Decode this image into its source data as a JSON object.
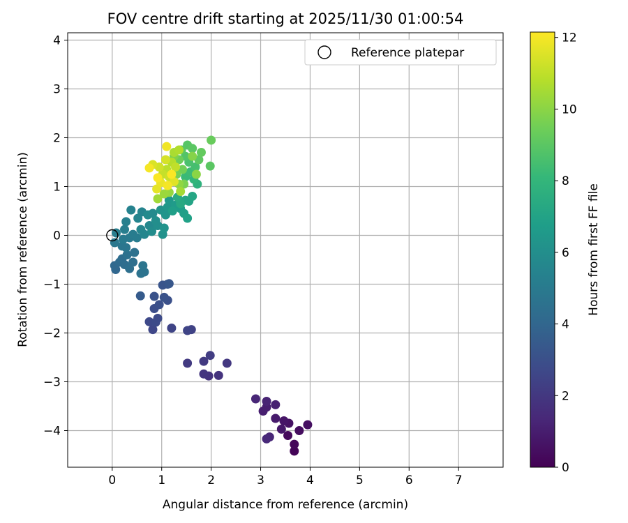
{
  "chart_data": {
    "type": "scatter",
    "title": "FOV centre drift starting at 2025/11/30 01:00:54",
    "xlabel": "Angular distance from reference (arcmin)",
    "ylabel": "Rotation from reference (arcmin)",
    "xlim": [
      -0.9,
      7.9
    ],
    "ylim": [
      -4.75,
      4.15
    ],
    "xticks": [
      0,
      1,
      2,
      3,
      4,
      5,
      6,
      7
    ],
    "yticks": [
      -4,
      -3,
      -2,
      -1,
      0,
      1,
      2,
      3,
      4
    ],
    "grid": true,
    "legend": {
      "position": "top-right",
      "entries": [
        {
          "label": "Reference platepar",
          "marker": "open-circle"
        }
      ]
    },
    "reference_point": {
      "x": 0,
      "y": 0
    },
    "colorbar": {
      "label": "Hours from first FF file",
      "range": [
        0,
        12.15
      ],
      "ticks": [
        0,
        2,
        4,
        6,
        8,
        10,
        12
      ],
      "colormap": "viridis",
      "color_stops": [
        "#440154",
        "#482878",
        "#3e4989",
        "#31688e",
        "#26828e",
        "#1f9e89",
        "#35b779",
        "#6ece58",
        "#b5de2b",
        "#fde725"
      ]
    },
    "points": [
      {
        "x": 3.68,
        "y": -4.42,
        "h": 0.1
      },
      {
        "x": 3.68,
        "y": -4.28,
        "h": 0.2
      },
      {
        "x": 3.55,
        "y": -4.1,
        "h": 0.3
      },
      {
        "x": 3.78,
        "y": -4.0,
        "h": 0.4
      },
      {
        "x": 3.95,
        "y": -3.88,
        "h": 0.5
      },
      {
        "x": 3.57,
        "y": -3.85,
        "h": 0.6
      },
      {
        "x": 3.47,
        "y": -3.8,
        "h": 0.7
      },
      {
        "x": 3.42,
        "y": -3.97,
        "h": 0.8
      },
      {
        "x": 3.3,
        "y": -3.75,
        "h": 0.9
      },
      {
        "x": 3.05,
        "y": -3.6,
        "h": 1.0
      },
      {
        "x": 3.12,
        "y": -3.52,
        "h": 1.0
      },
      {
        "x": 3.3,
        "y": -3.47,
        "h": 1.1
      },
      {
        "x": 3.12,
        "y": -3.4,
        "h": 1.2
      },
      {
        "x": 2.9,
        "y": -3.35,
        "h": 1.3
      },
      {
        "x": 3.18,
        "y": -4.13,
        "h": 1.3
      },
      {
        "x": 3.12,
        "y": -4.17,
        "h": 1.4
      },
      {
        "x": 2.15,
        "y": -2.87,
        "h": 1.8
      },
      {
        "x": 1.95,
        "y": -2.88,
        "h": 1.8
      },
      {
        "x": 1.85,
        "y": -2.84,
        "h": 1.9
      },
      {
        "x": 2.32,
        "y": -2.62,
        "h": 2.0
      },
      {
        "x": 1.52,
        "y": -2.62,
        "h": 2.1
      },
      {
        "x": 1.85,
        "y": -2.58,
        "h": 2.1
      },
      {
        "x": 1.98,
        "y": -2.46,
        "h": 2.2
      },
      {
        "x": 1.6,
        "y": -1.93,
        "h": 2.4
      },
      {
        "x": 1.52,
        "y": -1.95,
        "h": 2.5
      },
      {
        "x": 1.2,
        "y": -1.9,
        "h": 2.5
      },
      {
        "x": 0.82,
        "y": -1.93,
        "h": 2.6
      },
      {
        "x": 0.75,
        "y": -1.77,
        "h": 2.7
      },
      {
        "x": 0.92,
        "y": -1.7,
        "h": 2.8
      },
      {
        "x": 0.88,
        "y": -1.78,
        "h": 2.8
      },
      {
        "x": 0.85,
        "y": -1.5,
        "h": 2.9
      },
      {
        "x": 0.95,
        "y": -1.42,
        "h": 3.0
      },
      {
        "x": 1.12,
        "y": -1.33,
        "h": 3.0
      },
      {
        "x": 1.05,
        "y": -1.27,
        "h": 3.1
      },
      {
        "x": 0.85,
        "y": -1.25,
        "h": 3.1
      },
      {
        "x": 1.02,
        "y": -1.02,
        "h": 3.2
      },
      {
        "x": 1.12,
        "y": -1.0,
        "h": 3.2
      },
      {
        "x": 1.15,
        "y": -0.99,
        "h": 3.3
      },
      {
        "x": 0.57,
        "y": -1.24,
        "h": 3.5
      },
      {
        "x": 0.07,
        "y": -0.7,
        "h": 4.0
      },
      {
        "x": 0.05,
        "y": -0.62,
        "h": 4.1
      },
      {
        "x": 0.15,
        "y": -0.55,
        "h": 4.2
      },
      {
        "x": 0.2,
        "y": -0.48,
        "h": 4.3
      },
      {
        "x": 0.25,
        "y": -0.6,
        "h": 4.3
      },
      {
        "x": 0.35,
        "y": -0.68,
        "h": 4.4
      },
      {
        "x": 0.42,
        "y": -0.55,
        "h": 4.4
      },
      {
        "x": 0.3,
        "y": -0.4,
        "h": 4.5
      },
      {
        "x": 0.45,
        "y": -0.35,
        "h": 4.5
      },
      {
        "x": 0.58,
        "y": -0.78,
        "h": 4.6
      },
      {
        "x": 0.65,
        "y": -0.75,
        "h": 4.6
      },
      {
        "x": 0.62,
        "y": -0.62,
        "h": 4.7
      },
      {
        "x": 0.2,
        "y": -0.22,
        "h": 4.8
      },
      {
        "x": 0.28,
        "y": -0.25,
        "h": 4.8
      },
      {
        "x": 0.05,
        "y": -0.15,
        "h": 4.9
      },
      {
        "x": 0.22,
        "y": -0.08,
        "h": 5.0
      },
      {
        "x": 0.35,
        "y": -0.05,
        "h": 5.0
      },
      {
        "x": 0.42,
        "y": 0.02,
        "h": 5.1
      },
      {
        "x": 0.5,
        "y": -0.05,
        "h": 5.1
      },
      {
        "x": 0.08,
        "y": 0.05,
        "h": 5.2
      },
      {
        "x": 0.25,
        "y": 0.12,
        "h": 5.2
      },
      {
        "x": 0.28,
        "y": 0.28,
        "h": 5.3
      },
      {
        "x": 0.38,
        "y": 0.52,
        "h": 5.4
      },
      {
        "x": 0.52,
        "y": 0.35,
        "h": 5.5
      },
      {
        "x": 0.6,
        "y": 0.48,
        "h": 5.5
      },
      {
        "x": 0.58,
        "y": 0.12,
        "h": 5.6
      },
      {
        "x": 0.65,
        "y": 0.02,
        "h": 5.6
      },
      {
        "x": 0.75,
        "y": 0.2,
        "h": 5.7
      },
      {
        "x": 0.72,
        "y": 0.42,
        "h": 5.8
      },
      {
        "x": 0.82,
        "y": 0.45,
        "h": 5.8
      },
      {
        "x": 0.8,
        "y": 0.08,
        "h": 5.9
      },
      {
        "x": 0.92,
        "y": 0.2,
        "h": 6.0
      },
      {
        "x": 0.88,
        "y": 0.3,
        "h": 6.0
      },
      {
        "x": 1.02,
        "y": 0.02,
        "h": 6.1
      },
      {
        "x": 1.05,
        "y": 0.15,
        "h": 6.2
      },
      {
        "x": 0.98,
        "y": 0.52,
        "h": 6.2
      },
      {
        "x": 1.08,
        "y": 0.42,
        "h": 6.3
      },
      {
        "x": 1.12,
        "y": 0.58,
        "h": 6.4
      },
      {
        "x": 1.15,
        "y": 0.72,
        "h": 6.5
      },
      {
        "x": 1.28,
        "y": 0.62,
        "h": 6.6
      },
      {
        "x": 1.38,
        "y": 0.55,
        "h": 6.7
      },
      {
        "x": 1.45,
        "y": 0.45,
        "h": 6.8
      },
      {
        "x": 1.22,
        "y": 0.5,
        "h": 6.8
      },
      {
        "x": 1.52,
        "y": 0.35,
        "h": 6.9
      },
      {
        "x": 1.55,
        "y": 0.7,
        "h": 7.0
      },
      {
        "x": 1.48,
        "y": 0.72,
        "h": 7.1
      },
      {
        "x": 1.62,
        "y": 0.8,
        "h": 7.2
      },
      {
        "x": 1.38,
        "y": 0.65,
        "h": 7.3
      },
      {
        "x": 1.32,
        "y": 0.78,
        "h": 7.4
      },
      {
        "x": 1.72,
        "y": 1.05,
        "h": 7.8
      },
      {
        "x": 1.65,
        "y": 1.15,
        "h": 8.0
      },
      {
        "x": 1.48,
        "y": 1.2,
        "h": 8.2
      },
      {
        "x": 1.58,
        "y": 1.3,
        "h": 8.3
      },
      {
        "x": 1.68,
        "y": 1.4,
        "h": 8.5
      },
      {
        "x": 1.55,
        "y": 1.5,
        "h": 8.6
      },
      {
        "x": 1.48,
        "y": 1.62,
        "h": 8.8
      },
      {
        "x": 1.52,
        "y": 1.85,
        "h": 8.9
      },
      {
        "x": 1.4,
        "y": 1.75,
        "h": 9.0
      },
      {
        "x": 1.62,
        "y": 1.78,
        "h": 9.0
      },
      {
        "x": 1.75,
        "y": 1.55,
        "h": 9.1
      },
      {
        "x": 1.8,
        "y": 1.7,
        "h": 9.2
      },
      {
        "x": 1.98,
        "y": 1.42,
        "h": 9.0
      },
      {
        "x": 2.0,
        "y": 1.95,
        "h": 9.3
      },
      {
        "x": 1.35,
        "y": 1.55,
        "h": 9.4
      },
      {
        "x": 1.42,
        "y": 1.35,
        "h": 9.5
      },
      {
        "x": 1.3,
        "y": 1.25,
        "h": 9.6
      },
      {
        "x": 1.45,
        "y": 1.05,
        "h": 9.7
      },
      {
        "x": 1.25,
        "y": 1.62,
        "h": 9.8
      },
      {
        "x": 1.62,
        "y": 1.62,
        "h": 9.9
      },
      {
        "x": 1.7,
        "y": 1.25,
        "h": 10.0
      },
      {
        "x": 1.35,
        "y": 1.05,
        "h": 10.1
      },
      {
        "x": 1.15,
        "y": 0.88,
        "h": 10.2
      },
      {
        "x": 1.05,
        "y": 0.85,
        "h": 10.3
      },
      {
        "x": 0.92,
        "y": 0.75,
        "h": 10.4
      },
      {
        "x": 1.38,
        "y": 0.9,
        "h": 10.5
      },
      {
        "x": 1.25,
        "y": 1.7,
        "h": 10.6
      },
      {
        "x": 1.35,
        "y": 1.75,
        "h": 10.7
      },
      {
        "x": 1.2,
        "y": 1.5,
        "h": 10.8
      },
      {
        "x": 1.1,
        "y": 1.35,
        "h": 10.9
      },
      {
        "x": 1.28,
        "y": 1.4,
        "h": 11.0
      },
      {
        "x": 1.02,
        "y": 1.25,
        "h": 11.1
      },
      {
        "x": 1.15,
        "y": 1.2,
        "h": 11.2
      },
      {
        "x": 0.95,
        "y": 1.4,
        "h": 11.3
      },
      {
        "x": 1.08,
        "y": 1.55,
        "h": 11.4
      },
      {
        "x": 0.82,
        "y": 1.45,
        "h": 11.5
      },
      {
        "x": 1.25,
        "y": 1.1,
        "h": 11.6
      },
      {
        "x": 0.9,
        "y": 0.95,
        "h": 11.7
      },
      {
        "x": 0.98,
        "y": 1.08,
        "h": 11.8
      },
      {
        "x": 1.1,
        "y": 1.82,
        "h": 11.9
      },
      {
        "x": 0.75,
        "y": 1.38,
        "h": 12.0
      },
      {
        "x": 1.12,
        "y": 1.02,
        "h": 12.0
      },
      {
        "x": 1.2,
        "y": 1.25,
        "h": 12.1
      },
      {
        "x": 0.92,
        "y": 1.18,
        "h": 12.1
      }
    ]
  }
}
